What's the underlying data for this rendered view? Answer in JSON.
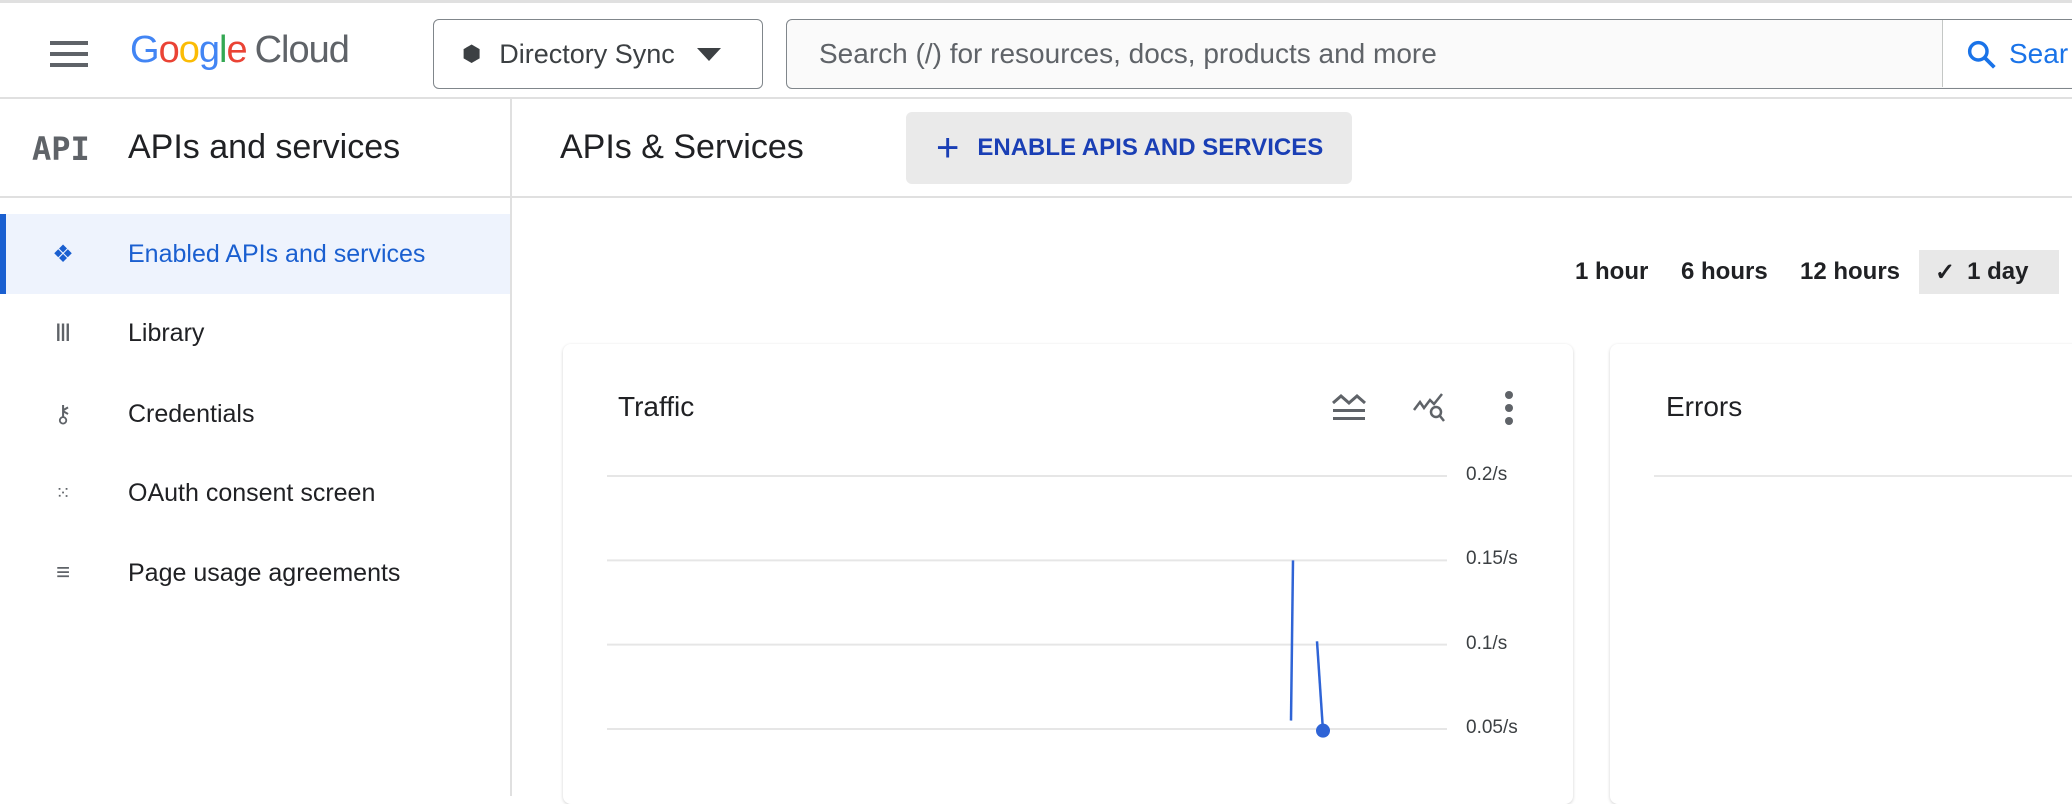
{
  "header": {
    "logo": {
      "google": "Google",
      "cloud": "Cloud"
    },
    "project": "Directory Sync",
    "search_placeholder": "Search (/) for resources, docs, products and more",
    "search_button": "Sear"
  },
  "sidebar": {
    "icon_text": "API",
    "title": "APIs and services",
    "items": [
      {
        "label": "Enabled APIs and services",
        "icon": "enabled-apis-icon",
        "active": true
      },
      {
        "label": "Library",
        "icon": "library-icon"
      },
      {
        "label": "Credentials",
        "icon": "key-icon"
      },
      {
        "label": "OAuth consent screen",
        "icon": "oauth-icon"
      },
      {
        "label": "Page usage agreements",
        "icon": "settings-list-icon"
      }
    ]
  },
  "main": {
    "title": "APIs & Services",
    "enable_button": "ENABLE APIS AND SERVICES",
    "time_ranges": [
      {
        "label": "1 hour"
      },
      {
        "label": "6 hours"
      },
      {
        "label": "12 hours"
      },
      {
        "label": "1 day",
        "selected": true
      }
    ],
    "cards": [
      {
        "title": "Traffic"
      },
      {
        "title": "Errors"
      }
    ]
  },
  "colors": {
    "accent": "#1a5fd0",
    "series": "#2f64d6"
  },
  "chart_data": {
    "type": "line",
    "title": "Traffic",
    "yticks": [
      "0.2/s",
      "0.15/s",
      "0.1/s",
      "0.05/s"
    ],
    "ylim": [
      0.05,
      0.2
    ],
    "grid": true,
    "series": [
      {
        "values": [
          0.055,
          0.15,
          null,
          0.102,
          0.049
        ]
      }
    ]
  }
}
